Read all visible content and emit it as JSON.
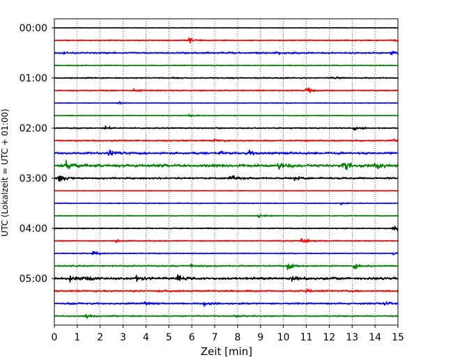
{
  "chart_data": {
    "type": "line",
    "title": "",
    "xlabel": "Zeit  [min]",
    "ylabel": "UTC (Lokalzeit = UTC + 01:00)",
    "xlim": [
      0,
      15
    ],
    "x_ticks": [
      "0",
      "1",
      "2",
      "3",
      "4",
      "5",
      "6",
      "7",
      "8",
      "9",
      "10",
      "11",
      "12",
      "13",
      "14",
      "15"
    ],
    "y_tick_labels": [
      "00:00",
      "01:00",
      "02:00",
      "03:00",
      "04:00",
      "05:00"
    ],
    "trace_interval_minutes": 15,
    "trace_count": 24,
    "color_cycle": [
      "#000000",
      "#ff0000",
      "#0000ff",
      "#008000"
    ],
    "grid": "vertical dotted lines at each minute",
    "series": [
      {
        "start": "00:00",
        "color": "#000000",
        "noise": 0.4,
        "events": []
      },
      {
        "start": "00:15",
        "color": "#ff0000",
        "noise": 0.8,
        "events": [
          {
            "t": 5.9,
            "amp": 4
          },
          {
            "t": 14.9,
            "amp": 3
          }
        ]
      },
      {
        "start": "00:30",
        "color": "#0000ff",
        "noise": 1.2,
        "events": [
          {
            "t": 0.3,
            "amp": 3
          },
          {
            "t": 9.7,
            "amp": 2.5
          },
          {
            "t": 14.7,
            "amp": 2
          }
        ]
      },
      {
        "start": "00:45",
        "color": "#008000",
        "noise": 0.7,
        "events": []
      },
      {
        "start": "01:00",
        "color": "#000000",
        "noise": 0.9,
        "events": [
          {
            "t": 12.1,
            "amp": 2
          }
        ]
      },
      {
        "start": "01:15",
        "color": "#ff0000",
        "noise": 0.9,
        "events": [
          {
            "t": 3.5,
            "amp": 3
          },
          {
            "t": 11.0,
            "amp": 5
          }
        ]
      },
      {
        "start": "01:30",
        "color": "#0000ff",
        "noise": 0.5,
        "events": [
          {
            "t": 2.8,
            "amp": 2
          }
        ]
      },
      {
        "start": "01:45",
        "color": "#008000",
        "noise": 0.6,
        "events": [
          {
            "t": 5.9,
            "amp": 2
          }
        ]
      },
      {
        "start": "02:00",
        "color": "#000000",
        "noise": 0.9,
        "events": [
          {
            "t": 2.2,
            "amp": 3
          },
          {
            "t": 13.1,
            "amp": 5
          }
        ]
      },
      {
        "start": "02:15",
        "color": "#ff0000",
        "noise": 1.0,
        "events": [
          {
            "t": 7.0,
            "amp": 3
          },
          {
            "t": 14.8,
            "amp": 3
          }
        ]
      },
      {
        "start": "02:30",
        "color": "#0000ff",
        "noise": 1.7,
        "events": [
          {
            "t": 2.4,
            "amp": 4
          },
          {
            "t": 7.2,
            "amp": 3
          },
          {
            "t": 8.5,
            "amp": 3.5
          }
        ]
      },
      {
        "start": "02:45",
        "color": "#008000",
        "noise": 2.2,
        "events": [
          {
            "t": 0.5,
            "amp": 8
          },
          {
            "t": 9.8,
            "amp": 5
          },
          {
            "t": 12.6,
            "amp": 9
          },
          {
            "t": 14.0,
            "amp": 5
          }
        ]
      },
      {
        "start": "03:00",
        "color": "#000000",
        "noise": 1.4,
        "events": [
          {
            "t": 0.2,
            "amp": 6
          },
          {
            "t": 7.7,
            "amp": 5
          },
          {
            "t": 10.5,
            "amp": 4
          }
        ]
      },
      {
        "start": "03:15",
        "color": "#ff0000",
        "noise": 0.5,
        "events": []
      },
      {
        "start": "03:30",
        "color": "#0000ff",
        "noise": 0.6,
        "events": [
          {
            "t": 12.5,
            "amp": 2
          }
        ]
      },
      {
        "start": "03:45",
        "color": "#008000",
        "noise": 0.6,
        "events": [
          {
            "t": 8.9,
            "amp": 4
          }
        ]
      },
      {
        "start": "04:00",
        "color": "#000000",
        "noise": 0.8,
        "events": [
          {
            "t": 14.8,
            "amp": 6
          }
        ]
      },
      {
        "start": "04:15",
        "color": "#ff0000",
        "noise": 0.8,
        "events": [
          {
            "t": 2.7,
            "amp": 2
          },
          {
            "t": 10.8,
            "amp": 5
          }
        ]
      },
      {
        "start": "04:30",
        "color": "#0000ff",
        "noise": 0.7,
        "events": [
          {
            "t": 1.7,
            "amp": 4
          },
          {
            "t": 14.8,
            "amp": 2
          }
        ]
      },
      {
        "start": "04:45",
        "color": "#008000",
        "noise": 1.1,
        "events": [
          {
            "t": 6.0,
            "amp": 3
          },
          {
            "t": 10.2,
            "amp": 6
          },
          {
            "t": 13.1,
            "amp": 4
          }
        ]
      },
      {
        "start": "05:00",
        "color": "#000000",
        "noise": 1.8,
        "events": [
          {
            "t": 0.7,
            "amp": 6
          },
          {
            "t": 1.3,
            "amp": 5
          },
          {
            "t": 3.6,
            "amp": 4
          },
          {
            "t": 5.4,
            "amp": 5
          },
          {
            "t": 10.4,
            "amp": 4
          }
        ]
      },
      {
        "start": "05:15",
        "color": "#ff0000",
        "noise": 1.3,
        "events": [
          {
            "t": 11.0,
            "amp": 3
          }
        ]
      },
      {
        "start": "05:30",
        "color": "#0000ff",
        "noise": 1.3,
        "events": [
          {
            "t": 3.9,
            "amp": 3
          },
          {
            "t": 6.5,
            "amp": 4
          },
          {
            "t": 14.4,
            "amp": 3
          }
        ]
      },
      {
        "start": "05:45",
        "color": "#008000",
        "noise": 1.0,
        "events": [
          {
            "t": 1.4,
            "amp": 3
          },
          {
            "t": 7.8,
            "amp": 2
          }
        ]
      }
    ]
  }
}
